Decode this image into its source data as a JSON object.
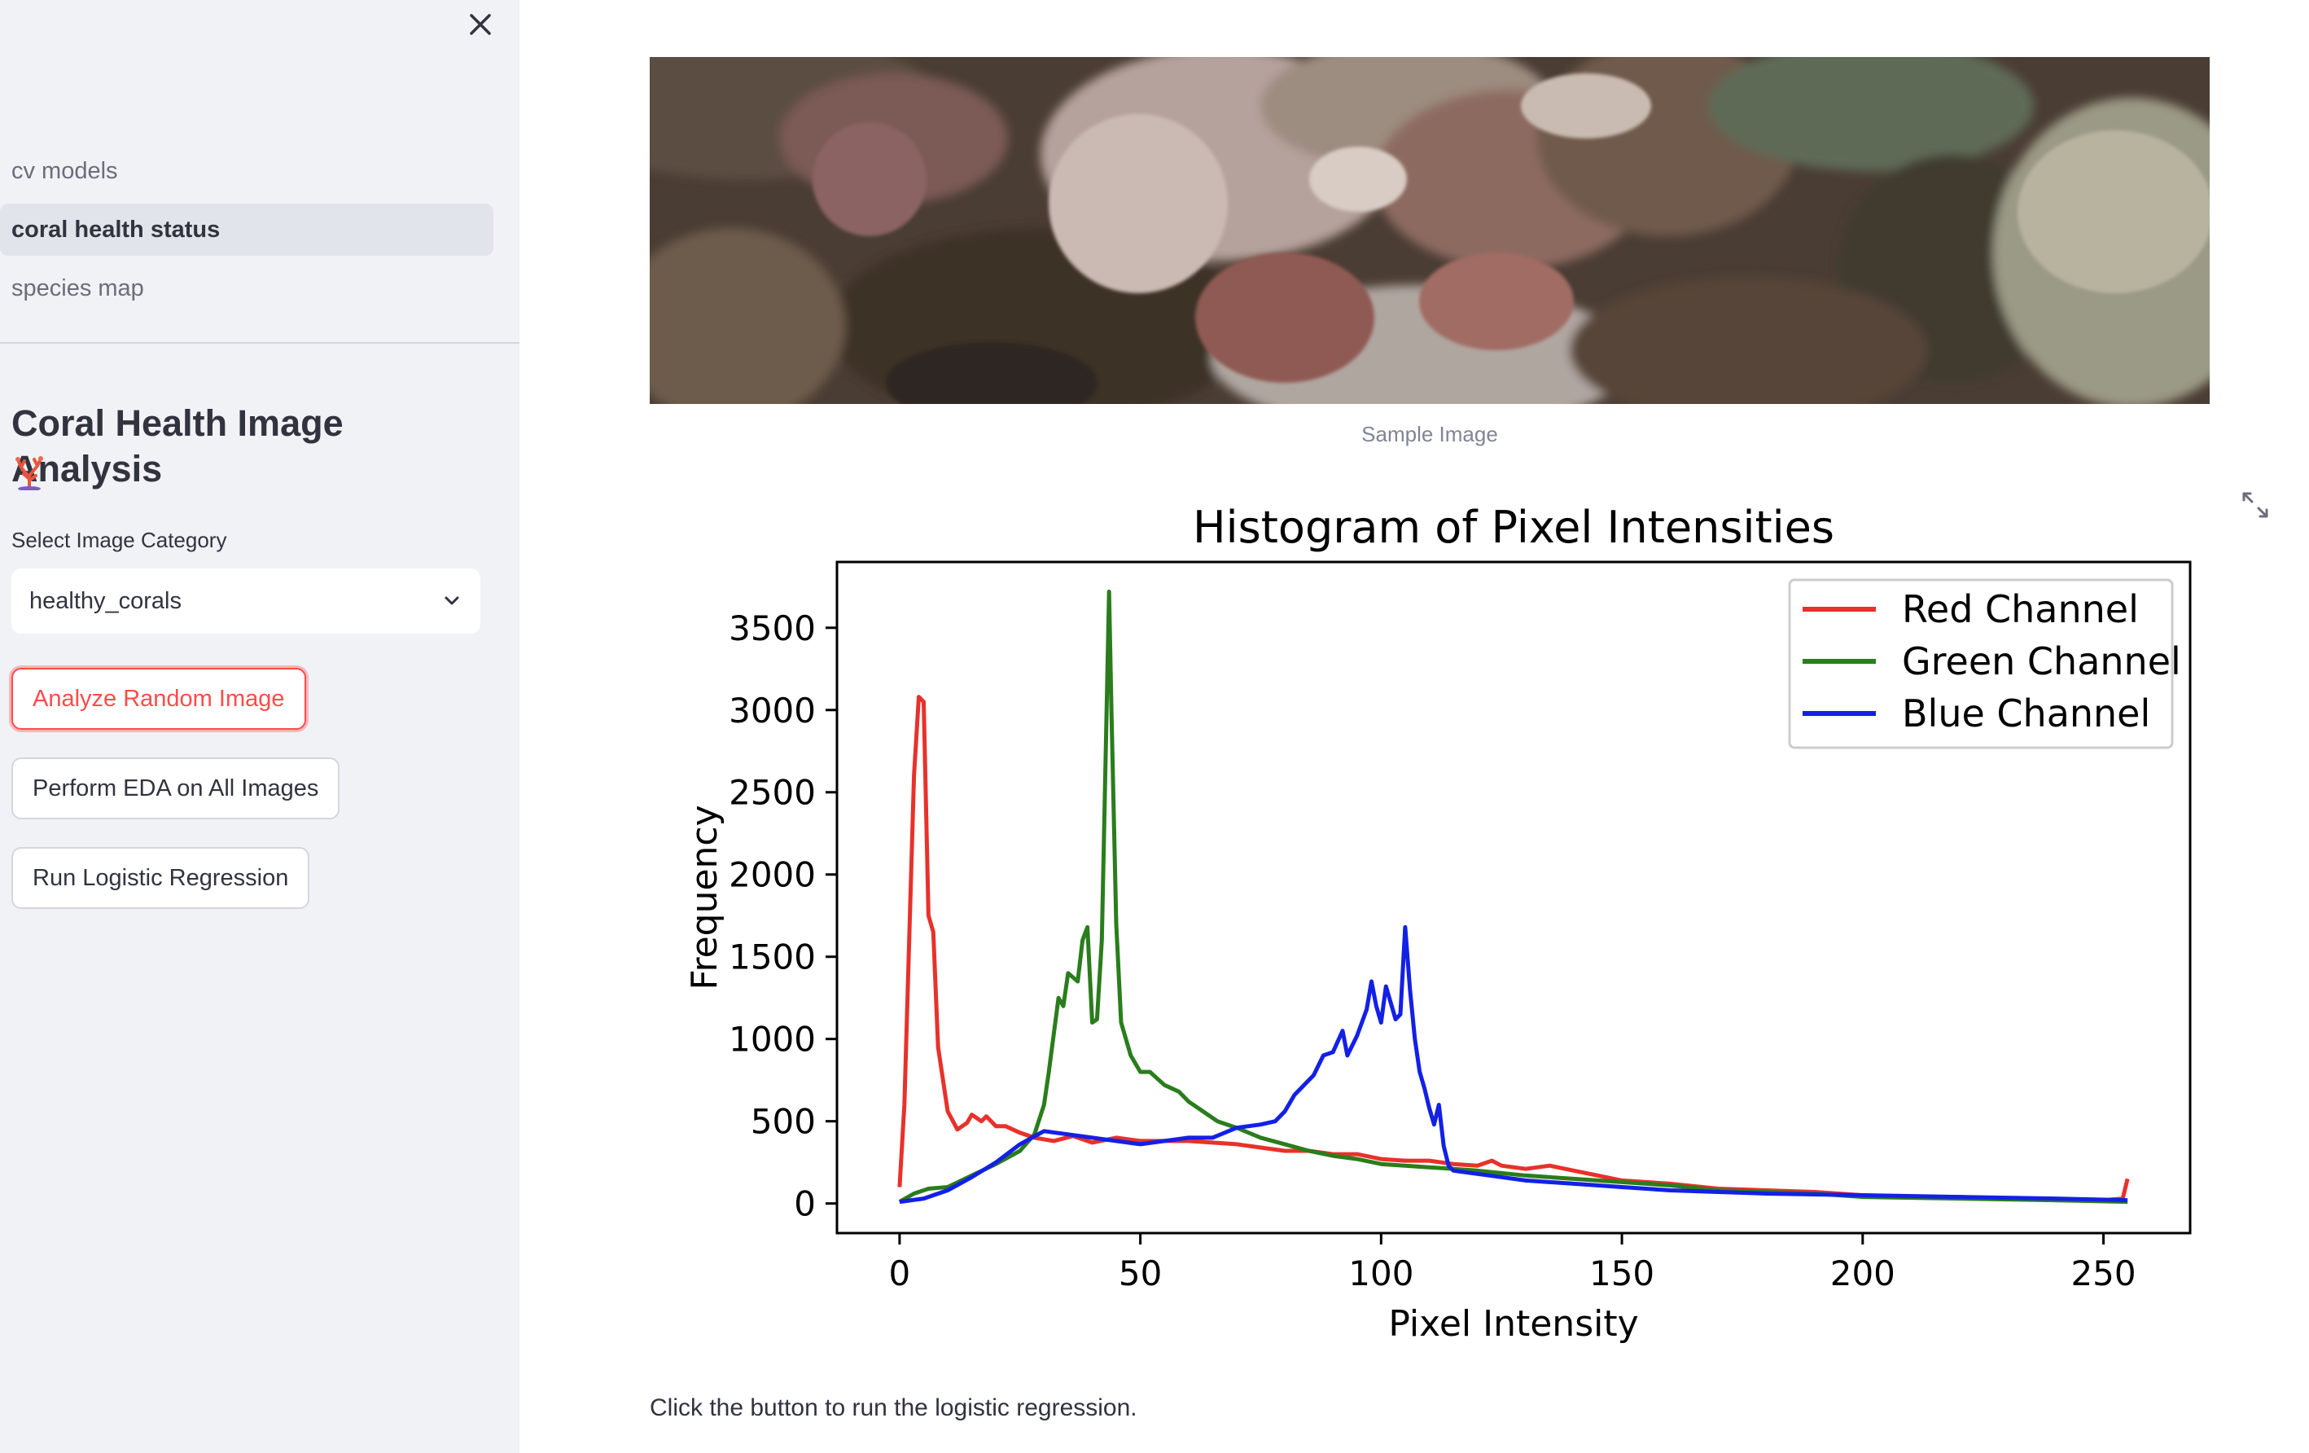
{
  "sidebar": {
    "nav_items": [
      {
        "label": "cv models",
        "active": false
      },
      {
        "label": "coral health status",
        "active": true
      },
      {
        "label": "species map",
        "active": false
      }
    ],
    "title": "Coral Health Image Analysis",
    "select_label": "Select Image Category",
    "select_value": "healthy_corals",
    "buttons": {
      "analyze": "Analyze Random Image",
      "eda": "Perform EDA on All Images",
      "regression": "Run Logistic Regression"
    }
  },
  "main": {
    "image_caption": "Sample Image",
    "footer_text": "Click the button to run the logistic regression."
  },
  "colors": {
    "accent": "#ff4b4b",
    "sidebar_bg": "#f0f2f6",
    "red": "#e8312b",
    "green": "#2a7d1c",
    "blue": "#1320e6"
  },
  "chart_data": {
    "type": "line",
    "title": "Histogram of Pixel Intensities",
    "xlabel": "Pixel Intensity",
    "ylabel": "Frequency",
    "xlim": [
      -13,
      268
    ],
    "ylim": [
      -180,
      3900
    ],
    "xticks": [
      0,
      50,
      100,
      150,
      200,
      250
    ],
    "yticks": [
      0,
      500,
      1000,
      1500,
      2000,
      2500,
      3000,
      3500
    ],
    "legend_position": "top-right",
    "grid": false,
    "series": [
      {
        "name": "Red Channel",
        "color": "#e8312b",
        "points": [
          [
            0,
            100
          ],
          [
            1,
            600
          ],
          [
            2,
            1600
          ],
          [
            3,
            2600
          ],
          [
            4,
            3080
          ],
          [
            5,
            3050
          ],
          [
            6,
            1750
          ],
          [
            7,
            1650
          ],
          [
            8,
            950
          ],
          [
            10,
            560
          ],
          [
            12,
            450
          ],
          [
            14,
            490
          ],
          [
            15,
            540
          ],
          [
            17,
            500
          ],
          [
            18,
            530
          ],
          [
            20,
            470
          ],
          [
            22,
            470
          ],
          [
            25,
            430
          ],
          [
            28,
            400
          ],
          [
            32,
            380
          ],
          [
            36,
            410
          ],
          [
            40,
            370
          ],
          [
            45,
            400
          ],
          [
            50,
            380
          ],
          [
            55,
            380
          ],
          [
            60,
            380
          ],
          [
            65,
            370
          ],
          [
            70,
            360
          ],
          [
            75,
            340
          ],
          [
            80,
            320
          ],
          [
            85,
            320
          ],
          [
            90,
            300
          ],
          [
            95,
            300
          ],
          [
            100,
            270
          ],
          [
            105,
            260
          ],
          [
            110,
            260
          ],
          [
            115,
            240
          ],
          [
            120,
            230
          ],
          [
            123,
            260
          ],
          [
            125,
            230
          ],
          [
            130,
            210
          ],
          [
            135,
            230
          ],
          [
            140,
            200
          ],
          [
            145,
            170
          ],
          [
            150,
            140
          ],
          [
            155,
            130
          ],
          [
            160,
            120
          ],
          [
            170,
            90
          ],
          [
            180,
            80
          ],
          [
            190,
            70
          ],
          [
            200,
            50
          ],
          [
            210,
            40
          ],
          [
            220,
            40
          ],
          [
            230,
            30
          ],
          [
            240,
            20
          ],
          [
            250,
            20
          ],
          [
            254,
            30
          ],
          [
            255,
            150
          ]
        ]
      },
      {
        "name": "Green Channel",
        "color": "#2a7d1c",
        "points": [
          [
            0,
            10
          ],
          [
            3,
            60
          ],
          [
            6,
            90
          ],
          [
            10,
            100
          ],
          [
            15,
            170
          ],
          [
            20,
            240
          ],
          [
            25,
            320
          ],
          [
            28,
            420
          ],
          [
            30,
            600
          ],
          [
            31,
            800
          ],
          [
            33,
            1250
          ],
          [
            34,
            1200
          ],
          [
            35,
            1400
          ],
          [
            37,
            1350
          ],
          [
            38,
            1600
          ],
          [
            39,
            1680
          ],
          [
            40,
            1100
          ],
          [
            41,
            1120
          ],
          [
            42,
            1600
          ],
          [
            43,
            3000
          ],
          [
            43.5,
            3720
          ],
          [
            44,
            3000
          ],
          [
            45,
            1700
          ],
          [
            46,
            1100
          ],
          [
            48,
            900
          ],
          [
            50,
            800
          ],
          [
            52,
            800
          ],
          [
            55,
            720
          ],
          [
            58,
            680
          ],
          [
            60,
            620
          ],
          [
            63,
            560
          ],
          [
            66,
            500
          ],
          [
            70,
            460
          ],
          [
            75,
            400
          ],
          [
            80,
            360
          ],
          [
            85,
            320
          ],
          [
            90,
            290
          ],
          [
            95,
            270
          ],
          [
            100,
            240
          ],
          [
            105,
            230
          ],
          [
            110,
            220
          ],
          [
            115,
            210
          ],
          [
            120,
            200
          ],
          [
            130,
            170
          ],
          [
            140,
            150
          ],
          [
            150,
            130
          ],
          [
            160,
            110
          ],
          [
            170,
            80
          ],
          [
            180,
            70
          ],
          [
            190,
            60
          ],
          [
            200,
            40
          ],
          [
            220,
            30
          ],
          [
            240,
            20
          ],
          [
            255,
            10
          ]
        ]
      },
      {
        "name": "Blue Channel",
        "color": "#1320e6",
        "points": [
          [
            0,
            10
          ],
          [
            5,
            30
          ],
          [
            10,
            80
          ],
          [
            15,
            160
          ],
          [
            20,
            250
          ],
          [
            25,
            360
          ],
          [
            30,
            440
          ],
          [
            35,
            420
          ],
          [
            40,
            400
          ],
          [
            45,
            380
          ],
          [
            50,
            360
          ],
          [
            55,
            380
          ],
          [
            60,
            400
          ],
          [
            65,
            400
          ],
          [
            70,
            460
          ],
          [
            75,
            480
          ],
          [
            78,
            500
          ],
          [
            80,
            560
          ],
          [
            82,
            660
          ],
          [
            84,
            720
          ],
          [
            86,
            780
          ],
          [
            88,
            900
          ],
          [
            90,
            920
          ],
          [
            92,
            1050
          ],
          [
            93,
            900
          ],
          [
            95,
            1020
          ],
          [
            97,
            1180
          ],
          [
            98,
            1350
          ],
          [
            99,
            1200
          ],
          [
            100,
            1100
          ],
          [
            101,
            1320
          ],
          [
            103,
            1120
          ],
          [
            104,
            1150
          ],
          [
            105,
            1680
          ],
          [
            106,
            1300
          ],
          [
            107,
            1000
          ],
          [
            108,
            800
          ],
          [
            109,
            700
          ],
          [
            110,
            580
          ],
          [
            111,
            480
          ],
          [
            112,
            600
          ],
          [
            113,
            350
          ],
          [
            114,
            230
          ],
          [
            115,
            200
          ],
          [
            120,
            180
          ],
          [
            125,
            160
          ],
          [
            130,
            140
          ],
          [
            140,
            120
          ],
          [
            150,
            100
          ],
          [
            160,
            80
          ],
          [
            170,
            70
          ],
          [
            180,
            60
          ],
          [
            200,
            50
          ],
          [
            220,
            40
          ],
          [
            240,
            30
          ],
          [
            255,
            20
          ]
        ]
      }
    ]
  }
}
